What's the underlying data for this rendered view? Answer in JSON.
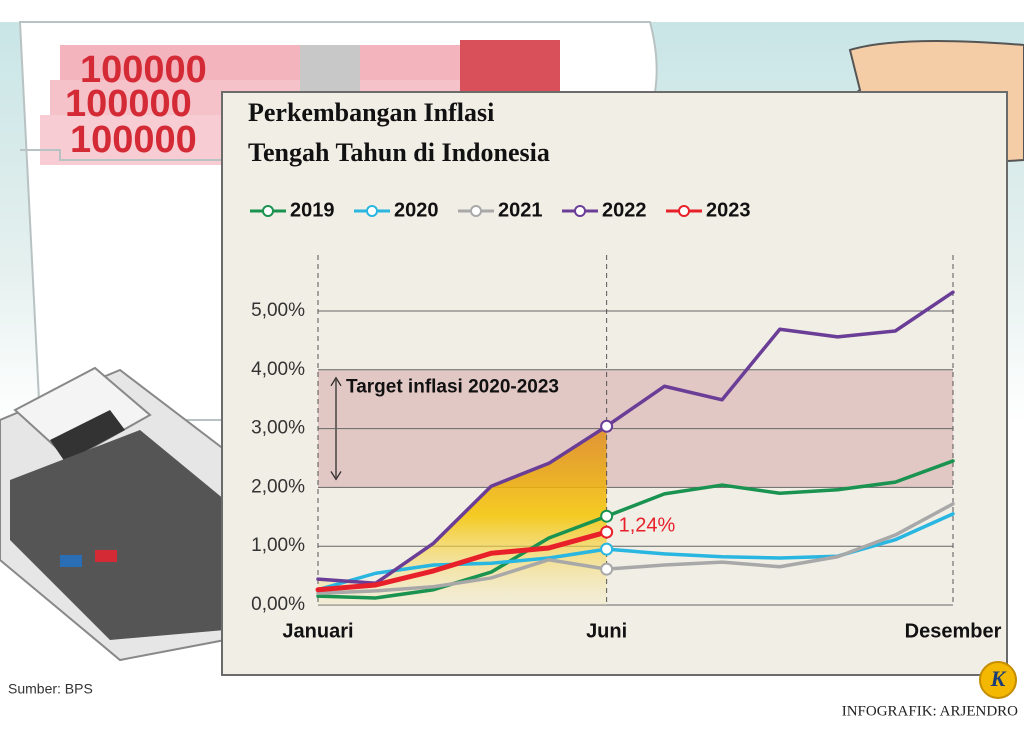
{
  "chart_data": {
    "type": "line",
    "title": [
      "Perkembangan Inflasi",
      "Tengah Tahun di Indonesia"
    ],
    "categories": [
      "Januari",
      null,
      null,
      null,
      null,
      "Juni",
      null,
      null,
      null,
      null,
      null,
      "Desember"
    ],
    "series": [
      {
        "name": "2019",
        "color": "#1a9350",
        "values": [
          0.15,
          0.12,
          0.26,
          0.56,
          1.14,
          1.51,
          1.89,
          2.04,
          1.9,
          1.96,
          2.09,
          2.45
        ]
      },
      {
        "name": "2020",
        "color": "#29b6e0",
        "values": [
          0.26,
          0.54,
          0.68,
          0.71,
          0.8,
          0.95,
          0.87,
          0.82,
          0.8,
          0.83,
          1.11,
          1.55
        ]
      },
      {
        "name": "2021",
        "color": "#a8a8a8",
        "values": [
          0.2,
          0.24,
          0.31,
          0.46,
          0.77,
          0.61,
          0.68,
          0.73,
          0.65,
          0.82,
          1.19,
          1.72
        ]
      },
      {
        "name": "2022",
        "color": "#6a3d96",
        "values": [
          0.44,
          0.37,
          1.05,
          2.02,
          2.41,
          3.04,
          3.72,
          3.49,
          4.69,
          4.56,
          4.66,
          5.32
        ]
      },
      {
        "name": "2023",
        "color": "#e8202a",
        "values": [
          0.26,
          0.34,
          0.58,
          0.88,
          0.97,
          1.24,
          null,
          null,
          null,
          null,
          null,
          null
        ],
        "value_labels": [
          null,
          null,
          null,
          null,
          null,
          "1,24%",
          null,
          null,
          null,
          null,
          null,
          null
        ]
      }
    ],
    "ylim": [
      0,
      5.5
    ],
    "yticks": [
      {
        "value": 0,
        "label": "0,00%"
      },
      {
        "value": 1,
        "label": "1,00%"
      },
      {
        "value": 2,
        "label": "2,00%"
      },
      {
        "value": 3,
        "label": "3,00%"
      },
      {
        "value": 4,
        "label": "4,00%"
      },
      {
        "value": 5,
        "label": "5,00%"
      }
    ],
    "grid": true,
    "target_band": {
      "label": "Target inflasi 2020-2023",
      "from": 2,
      "to": 4
    },
    "source": "Sumber: BPS",
    "credit": "INFOGRAFIK: ARJENDRO",
    "logo": "K",
    "banknote_text": "100000"
  }
}
